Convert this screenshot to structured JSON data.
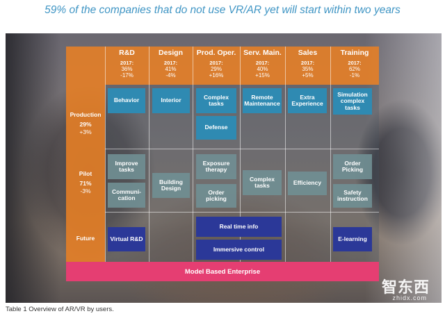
{
  "headline": "59% of the companies that do not use VR/AR yet will start within two years",
  "columns": [
    {
      "name": "R&D",
      "year": "2017:",
      "share": "36%",
      "change": "-17%"
    },
    {
      "name": "Design",
      "year": "2017:",
      "share": "41%",
      "change": "-4%"
    },
    {
      "name": "Prod. Oper.",
      "year": "2017:",
      "share": "29%",
      "change": "+16%"
    },
    {
      "name": "Serv. Main.",
      "year": "2017:",
      "share": "40%",
      "change": "+15%"
    },
    {
      "name": "Sales",
      "year": "2017:",
      "share": "35%",
      "change": "+5%"
    },
    {
      "name": "Training",
      "year": "2017:",
      "share": "62%",
      "change": "-1%"
    }
  ],
  "rows": [
    {
      "name": "Production",
      "share": "29%",
      "change": "+3%"
    },
    {
      "name": "Pilot",
      "share": "71%",
      "change": "-3%"
    },
    {
      "name": "Future"
    }
  ],
  "cells": {
    "behavior": "Behavior",
    "interior": "Interior",
    "complex_tasks_prod": "Complex tasks",
    "defense": "Defense",
    "remote_maintenance": "Remote Maintenance",
    "extra_experience": "Extra Experience",
    "simulation_complex_tasks": "Simulation complex tasks",
    "improve_tasks": "Improve tasks",
    "communication": "Communi-cation",
    "building_design": "Building Design",
    "exposure_therapy": "Exposure therapy",
    "order_picking_prod": "Order picking",
    "complex_tasks_serv": "Complex tasks",
    "efficiency": "Efficiency",
    "order_picking_training": "Order Picking",
    "safety_instruction": "Safety instruction",
    "virtual_rd": "Virtual R&D",
    "real_time_info": "Real time info",
    "immersive_control": "Immersive control",
    "e_learning": "E-learning"
  },
  "banner": "Model Based Enterprise",
  "watermark": "智东西",
  "watermark_sub": "zhidx.com",
  "caption": "Table 1 Overview of AR/VR by users.",
  "colors": {
    "headline": "#3f95c4",
    "orange": "#e88024",
    "teal": "#2f8ab2",
    "gray": "#708e92",
    "indigo": "#2b3898",
    "banner": "#e53e72"
  }
}
